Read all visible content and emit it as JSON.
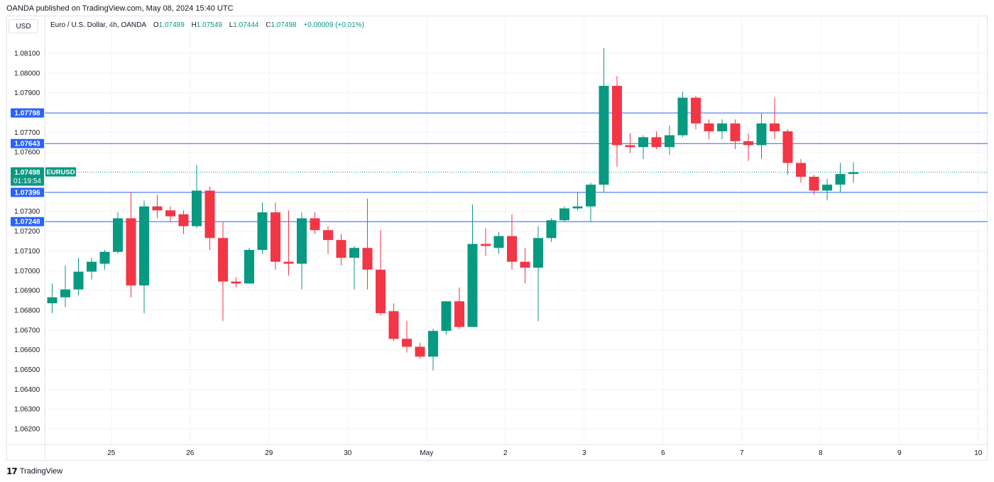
{
  "header": {
    "publisher": "OANDA published on TradingView.com, May 08, 2024 15:40 UTC",
    "currency": "USD"
  },
  "legend": {
    "symbol": "Euro / U.S. Dollar, 4h, OANDA",
    "open_label": "O",
    "open": "1.07489",
    "high_label": "H",
    "high": "1.07549",
    "low_label": "L",
    "low": "1.07444",
    "close_label": "C",
    "close": "1.07498",
    "change": "+0.00009 (+0.01%)"
  },
  "footer": {
    "brand": "TradingView",
    "logo_icon": "tradingview-logo-icon"
  },
  "colors": {
    "up": "#089981",
    "down": "#f23645",
    "level_line": "#2962ff",
    "grid": "#f0f3fa",
    "axis_text": "#131722",
    "last_price": "#089981"
  },
  "chart_data": {
    "type": "candlestick",
    "title": "Euro / U.S. Dollar, 4h, OANDA",
    "y_axis": {
      "ticks": [
        1.062,
        1.063,
        1.064,
        1.065,
        1.066,
        1.067,
        1.068,
        1.069,
        1.07,
        1.071,
        1.072,
        1.073,
        1.076,
        1.077,
        1.079,
        1.08,
        1.081
      ],
      "tick_labels": [
        "1.06200",
        "1.06300",
        "1.06400",
        "1.06500",
        "1.06600",
        "1.06700",
        "1.06800",
        "1.06900",
        "1.07000",
        "1.07100",
        "1.07200",
        "1.07300",
        "1.07600",
        "1.07700",
        "1.07900",
        "1.08000",
        "1.08100"
      ]
    },
    "x_axis": {
      "labels": [
        {
          "text": "25",
          "bar": 4.5
        },
        {
          "text": "26",
          "bar": 10.5
        },
        {
          "text": "29",
          "bar": 16.5
        },
        {
          "text": "30",
          "bar": 22.5
        },
        {
          "text": "May",
          "bar": 28.5
        },
        {
          "text": "2",
          "bar": 34.5
        },
        {
          "text": "3",
          "bar": 40.5
        },
        {
          "text": "6",
          "bar": 46.5
        },
        {
          "text": "7",
          "bar": 52.5
        },
        {
          "text": "8",
          "bar": 58.5
        },
        {
          "text": "9",
          "bar": 64.5
        },
        {
          "text": "10",
          "bar": 70.5
        }
      ]
    },
    "levels": [
      {
        "price": 1.07798,
        "label": "1.07798"
      },
      {
        "price": 1.07643,
        "label": "1.07643"
      },
      {
        "price": 1.07396,
        "label": "1.07396"
      },
      {
        "price": 1.07248,
        "label": "1.07248"
      }
    ],
    "last_price": {
      "price": 1.07498,
      "label": "1.07498",
      "countdown": "01:19:54",
      "symbol": "EURUSD"
    },
    "candles": [
      {
        "o": 1.06835,
        "h": 1.06935,
        "l": 1.06785,
        "c": 1.06865
      },
      {
        "o": 1.06865,
        "h": 1.07025,
        "l": 1.06815,
        "c": 1.06905
      },
      {
        "o": 1.06905,
        "h": 1.07065,
        "l": 1.06875,
        "c": 1.06995
      },
      {
        "o": 1.06995,
        "h": 1.07065,
        "l": 1.06955,
        "c": 1.07045
      },
      {
        "o": 1.07035,
        "h": 1.07105,
        "l": 1.07005,
        "c": 1.07095
      },
      {
        "o": 1.07095,
        "h": 1.07295,
        "l": 1.07085,
        "c": 1.07265
      },
      {
        "o": 1.07265,
        "h": 1.07395,
        "l": 1.06865,
        "c": 1.06925
      },
      {
        "o": 1.06925,
        "h": 1.07355,
        "l": 1.06785,
        "c": 1.07325
      },
      {
        "o": 1.07325,
        "h": 1.07385,
        "l": 1.07265,
        "c": 1.07305
      },
      {
        "o": 1.07305,
        "h": 1.07325,
        "l": 1.07245,
        "c": 1.07275
      },
      {
        "o": 1.07285,
        "h": 1.07305,
        "l": 1.07185,
        "c": 1.07225
      },
      {
        "o": 1.07225,
        "h": 1.07535,
        "l": 1.07215,
        "c": 1.07405
      },
      {
        "o": 1.07405,
        "h": 1.07425,
        "l": 1.07105,
        "c": 1.07165
      },
      {
        "o": 1.07165,
        "h": 1.07245,
        "l": 1.06745,
        "c": 1.06945
      },
      {
        "o": 1.06945,
        "h": 1.06965,
        "l": 1.06915,
        "c": 1.06935
      },
      {
        "o": 1.06935,
        "h": 1.07115,
        "l": 1.06935,
        "c": 1.07105
      },
      {
        "o": 1.07105,
        "h": 1.07345,
        "l": 1.07085,
        "c": 1.07295
      },
      {
        "o": 1.07295,
        "h": 1.07345,
        "l": 1.07005,
        "c": 1.07045
      },
      {
        "o": 1.07045,
        "h": 1.07305,
        "l": 1.06975,
        "c": 1.07035
      },
      {
        "o": 1.07035,
        "h": 1.07295,
        "l": 1.06905,
        "c": 1.07265
      },
      {
        "o": 1.07265,
        "h": 1.07295,
        "l": 1.07185,
        "c": 1.07205
      },
      {
        "o": 1.07205,
        "h": 1.07225,
        "l": 1.07085,
        "c": 1.07155
      },
      {
        "o": 1.07155,
        "h": 1.07185,
        "l": 1.07025,
        "c": 1.07065
      },
      {
        "o": 1.07065,
        "h": 1.07125,
        "l": 1.06905,
        "c": 1.07115
      },
      {
        "o": 1.07115,
        "h": 1.07365,
        "l": 1.06905,
        "c": 1.07005
      },
      {
        "o": 1.07005,
        "h": 1.07205,
        "l": 1.06775,
        "c": 1.06785
      },
      {
        "o": 1.06795,
        "h": 1.06835,
        "l": 1.06645,
        "c": 1.06655
      },
      {
        "o": 1.06655,
        "h": 1.06745,
        "l": 1.06585,
        "c": 1.06615
      },
      {
        "o": 1.06615,
        "h": 1.06635,
        "l": 1.06555,
        "c": 1.06565
      },
      {
        "o": 1.06565,
        "h": 1.06705,
        "l": 1.06495,
        "c": 1.06695
      },
      {
        "o": 1.06695,
        "h": 1.06845,
        "l": 1.06675,
        "c": 1.06845
      },
      {
        "o": 1.06845,
        "h": 1.06915,
        "l": 1.06705,
        "c": 1.06715
      },
      {
        "o": 1.06715,
        "h": 1.07335,
        "l": 1.06715,
        "c": 1.07135
      },
      {
        "o": 1.07135,
        "h": 1.07215,
        "l": 1.07075,
        "c": 1.07125
      },
      {
        "o": 1.07115,
        "h": 1.07195,
        "l": 1.07085,
        "c": 1.07175
      },
      {
        "o": 1.07175,
        "h": 1.07285,
        "l": 1.07005,
        "c": 1.07045
      },
      {
        "o": 1.07045,
        "h": 1.07115,
        "l": 1.06935,
        "c": 1.07015
      },
      {
        "o": 1.07015,
        "h": 1.07225,
        "l": 1.06745,
        "c": 1.07165
      },
      {
        "o": 1.07165,
        "h": 1.07265,
        "l": 1.07145,
        "c": 1.07255
      },
      {
        "o": 1.07255,
        "h": 1.07325,
        "l": 1.07245,
        "c": 1.07315
      },
      {
        "o": 1.07315,
        "h": 1.07395,
        "l": 1.07305,
        "c": 1.07325
      },
      {
        "o": 1.07325,
        "h": 1.07445,
        "l": 1.07245,
        "c": 1.07435
      },
      {
        "o": 1.07435,
        "h": 1.08125,
        "l": 1.07395,
        "c": 1.07935
      },
      {
        "o": 1.07935,
        "h": 1.07985,
        "l": 1.07525,
        "c": 1.07635
      },
      {
        "o": 1.07635,
        "h": 1.07695,
        "l": 1.07595,
        "c": 1.07625
      },
      {
        "o": 1.07625,
        "h": 1.07685,
        "l": 1.07565,
        "c": 1.07675
      },
      {
        "o": 1.07675,
        "h": 1.07705,
        "l": 1.07615,
        "c": 1.07625
      },
      {
        "o": 1.07625,
        "h": 1.07735,
        "l": 1.07585,
        "c": 1.07685
      },
      {
        "o": 1.07685,
        "h": 1.07905,
        "l": 1.07675,
        "c": 1.07875
      },
      {
        "o": 1.07875,
        "h": 1.07885,
        "l": 1.07715,
        "c": 1.07745
      },
      {
        "o": 1.07745,
        "h": 1.07765,
        "l": 1.07665,
        "c": 1.07705
      },
      {
        "o": 1.07705,
        "h": 1.07765,
        "l": 1.07665,
        "c": 1.07745
      },
      {
        "o": 1.07745,
        "h": 1.07765,
        "l": 1.07615,
        "c": 1.07655
      },
      {
        "o": 1.07655,
        "h": 1.07695,
        "l": 1.07555,
        "c": 1.07635
      },
      {
        "o": 1.07635,
        "h": 1.07795,
        "l": 1.07565,
        "c": 1.07745
      },
      {
        "o": 1.07745,
        "h": 1.07875,
        "l": 1.07665,
        "c": 1.07705
      },
      {
        "o": 1.07705,
        "h": 1.07715,
        "l": 1.07485,
        "c": 1.07545
      },
      {
        "o": 1.07545,
        "h": 1.07565,
        "l": 1.07445,
        "c": 1.07475
      },
      {
        "o": 1.07475,
        "h": 1.07485,
        "l": 1.07385,
        "c": 1.07405
      },
      {
        "o": 1.07405,
        "h": 1.07465,
        "l": 1.07355,
        "c": 1.07435
      },
      {
        "o": 1.07435,
        "h": 1.07545,
        "l": 1.07395,
        "c": 1.07489
      },
      {
        "o": 1.07489,
        "h": 1.07549,
        "l": 1.07444,
        "c": 1.07498
      }
    ]
  }
}
